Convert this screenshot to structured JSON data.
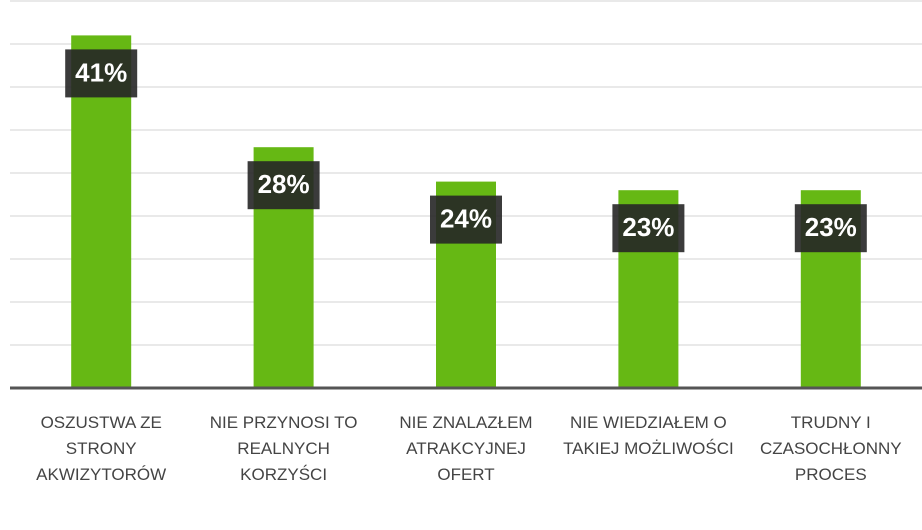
{
  "chart_data": {
    "type": "bar",
    "categories": [
      "OSZUSTWA ZE STRONY AKWIZYTORÓW",
      "NIE PRZYNOSI TO REALNYCH KORZYŚCI",
      "NIE ZNALAZŁEM ATRAKCYJNEJ OFERT",
      "NIE WIEDZIAŁEM O TAKIEJ MOŻLIWOŚCI",
      "TRUDNY I CZASOCHŁONNY PROCES"
    ],
    "values": [
      41,
      28,
      24,
      23,
      23
    ],
    "value_labels": [
      "41%",
      "28%",
      "24%",
      "23%",
      "23%"
    ],
    "color": "#66b814",
    "ylim": [
      0,
      45
    ],
    "yticks": [
      0,
      5,
      10,
      15,
      20,
      25,
      30,
      35,
      40,
      45
    ],
    "grid": true
  }
}
